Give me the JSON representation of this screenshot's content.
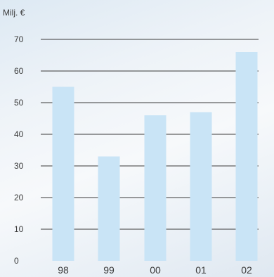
{
  "chart_data": {
    "type": "bar",
    "unit_label": "Milj. €",
    "categories": [
      "98",
      "99",
      "00",
      "01",
      "02"
    ],
    "values": [
      55,
      33,
      46,
      47,
      66
    ],
    "ylim": [
      0,
      70
    ],
    "yticks": [
      0,
      10,
      20,
      30,
      40,
      50,
      60,
      70
    ],
    "grid": true,
    "bar_color": "#c9e4f6",
    "grid_color": "#3a3a3a"
  }
}
